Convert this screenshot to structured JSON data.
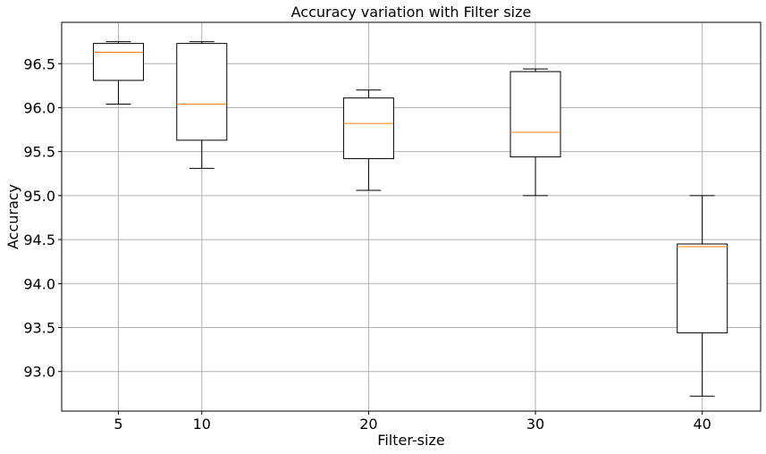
{
  "chart_data": {
    "type": "box",
    "title": "Accuracy variation with Filter size",
    "xlabel": "Filter-size",
    "ylabel": "Accuracy",
    "ylim": [
      92.55,
      96.97
    ],
    "xlim": [
      1.6,
      43.5
    ],
    "grid": true,
    "x_ticks": [
      5,
      10,
      20,
      30,
      40
    ],
    "x_tick_labels": [
      "5",
      "10",
      "20",
      "30",
      "40"
    ],
    "y_ticks": [
      93.0,
      93.5,
      94.0,
      94.5,
      95.0,
      95.5,
      96.0,
      96.5
    ],
    "y_tick_labels": [
      "93.0",
      "93.5",
      "94.0",
      "94.5",
      "95.0",
      "95.5",
      "96.0",
      "96.5"
    ],
    "boxes": [
      {
        "x": 5,
        "whisker_low": 96.04,
        "q1": 96.31,
        "median": 96.63,
        "q3": 96.73,
        "whisker_high": 96.75
      },
      {
        "x": 10,
        "whisker_low": 95.31,
        "q1": 95.63,
        "median": 96.04,
        "q3": 96.73,
        "whisker_high": 96.75
      },
      {
        "x": 20,
        "whisker_low": 95.06,
        "q1": 95.42,
        "median": 95.82,
        "q3": 96.11,
        "whisker_high": 96.2
      },
      {
        "x": 30,
        "whisker_low": 95.0,
        "q1": 95.44,
        "median": 95.72,
        "q3": 96.41,
        "whisker_high": 96.44
      },
      {
        "x": 40,
        "whisker_low": 92.72,
        "q1": 93.44,
        "median": 94.42,
        "q3": 94.45,
        "whisker_high": 95.0
      }
    ],
    "colors": {
      "box": "#000000",
      "median": "#ff7f0e",
      "grid": "#b0b0b0"
    }
  }
}
